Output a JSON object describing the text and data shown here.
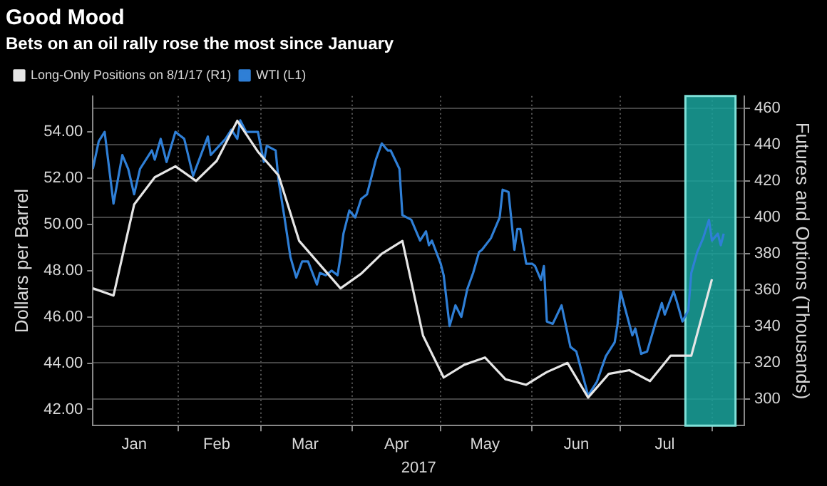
{
  "chart_data": {
    "type": "line",
    "title": "Good Mood",
    "subtitle": "Bets on an oil rally rose the most since January",
    "xlabel": "2017",
    "ylabel": "Dollars per Barrel",
    "y2label": "Futures and Options (Thousands)",
    "xlim": [
      "2017-01-03",
      "2017-08-12"
    ],
    "xticks": [
      {
        "value": "2017-01-17",
        "label": "Jan"
      },
      {
        "value": "2017-02-01",
        "label": null
      },
      {
        "value": "2017-02-14",
        "label": "Feb"
      },
      {
        "value": "2017-03-01",
        "label": null
      },
      {
        "value": "2017-03-16",
        "label": "Mar"
      },
      {
        "value": "2017-04-01",
        "label": null
      },
      {
        "value": "2017-04-16",
        "label": "Apr"
      },
      {
        "value": "2017-05-01",
        "label": null
      },
      {
        "value": "2017-05-16",
        "label": "May"
      },
      {
        "value": "2017-06-01",
        "label": null
      },
      {
        "value": "2017-06-16",
        "label": "Jun"
      },
      {
        "value": "2017-07-01",
        "label": null
      },
      {
        "value": "2017-07-16",
        "label": "Jul"
      },
      {
        "value": "2017-08-01",
        "label": null
      }
    ],
    "ylim": [
      41.3,
      55.55
    ],
    "yticks": [
      {
        "value": 42,
        "label": "42.00"
      },
      {
        "value": 44,
        "label": "44.00"
      },
      {
        "value": 46,
        "label": "46.00"
      },
      {
        "value": 48,
        "label": "48.00"
      },
      {
        "value": 50,
        "label": "50.00"
      },
      {
        "value": 52,
        "label": "52.00"
      },
      {
        "value": 54,
        "label": "54.00"
      }
    ],
    "y2lim": [
      285.6,
      466.6
    ],
    "y2ticks": [
      300,
      320,
      340,
      360,
      380,
      400,
      420,
      440,
      460
    ],
    "grid": true,
    "legend": "top left",
    "bands": [
      {
        "axis": "x",
        "from": "2017-07-23",
        "to": "2017-08-09",
        "color": "#1aa39c"
      }
    ],
    "series": [
      {
        "name": "Long-Only Positions on 8/1/17 (R1)",
        "color": "#e6e6e6",
        "axis": "y2",
        "x": [
          "2017-01-03",
          "2017-01-10",
          "2017-01-17",
          "2017-01-24",
          "2017-01-31",
          "2017-02-07",
          "2017-02-14",
          "2017-02-21",
          "2017-02-28",
          "2017-03-07",
          "2017-03-14",
          "2017-03-21",
          "2017-03-28",
          "2017-04-04",
          "2017-04-11",
          "2017-04-18",
          "2017-04-25",
          "2017-05-02",
          "2017-05-09",
          "2017-05-16",
          "2017-05-23",
          "2017-05-30",
          "2017-06-06",
          "2017-06-13",
          "2017-06-20",
          "2017-06-27",
          "2017-07-04",
          "2017-07-11",
          "2017-07-18",
          "2017-07-25",
          "2017-08-01"
        ],
        "values": [
          361,
          357,
          407,
          422,
          428,
          420,
          431,
          453,
          436,
          423,
          387,
          374,
          361,
          369,
          380,
          387,
          335,
          312,
          319,
          323,
          311,
          308,
          315,
          320,
          301,
          314,
          316,
          310,
          324,
          324,
          366
        ]
      },
      {
        "name": "WTI (L1)",
        "color": "#2f7fd6",
        "axis": "y",
        "x": [
          "2017-01-03",
          "2017-01-05",
          "2017-01-07",
          "2017-01-10",
          "2017-01-13",
          "2017-01-15",
          "2017-01-17",
          "2017-01-19",
          "2017-01-23",
          "2017-01-24",
          "2017-01-26",
          "2017-01-28",
          "2017-01-31",
          "2017-02-03",
          "2017-02-06",
          "2017-02-11",
          "2017-02-12",
          "2017-02-17",
          "2017-02-19",
          "2017-02-21",
          "2017-02-22",
          "2017-02-24",
          "2017-02-28",
          "2017-03-02",
          "2017-03-03",
          "2017-03-06",
          "2017-03-07",
          "2017-03-09",
          "2017-03-11",
          "2017-03-13",
          "2017-03-15",
          "2017-03-17",
          "2017-03-20",
          "2017-03-21",
          "2017-03-23",
          "2017-03-25",
          "2017-03-27",
          "2017-03-28",
          "2017-03-29",
          "2017-03-31",
          "2017-04-02",
          "2017-04-04",
          "2017-04-06",
          "2017-04-09",
          "2017-04-11",
          "2017-04-13",
          "2017-04-14",
          "2017-04-17",
          "2017-04-18",
          "2017-04-21",
          "2017-04-24",
          "2017-04-26",
          "2017-04-27",
          "2017-04-28",
          "2017-05-01",
          "2017-05-02",
          "2017-05-04",
          "2017-05-06",
          "2017-05-08",
          "2017-05-10",
          "2017-05-12",
          "2017-05-14",
          "2017-05-15",
          "2017-05-18",
          "2017-05-21",
          "2017-05-22",
          "2017-05-24",
          "2017-05-26",
          "2017-05-27",
          "2017-05-28",
          "2017-05-30",
          "2017-06-01",
          "2017-06-02",
          "2017-06-04",
          "2017-06-05",
          "2017-06-06",
          "2017-06-08",
          "2017-06-11",
          "2017-06-14",
          "2017-06-16",
          "2017-06-20",
          "2017-06-23",
          "2017-06-26",
          "2017-06-29",
          "2017-06-30",
          "2017-07-01",
          "2017-07-05",
          "2017-07-06",
          "2017-07-08",
          "2017-07-10",
          "2017-07-13",
          "2017-07-15",
          "2017-07-16",
          "2017-07-19",
          "2017-07-20",
          "2017-07-22",
          "2017-07-24",
          "2017-07-25",
          "2017-07-27",
          "2017-07-29",
          "2017-07-31",
          "2017-08-01",
          "2017-08-03",
          "2017-08-04",
          "2017-08-05"
        ],
        "values": [
          52.4,
          53.6,
          54.0,
          50.9,
          53.0,
          52.4,
          51.3,
          52.4,
          53.2,
          52.8,
          53.7,
          52.7,
          54.0,
          53.7,
          52.1,
          53.8,
          53.0,
          53.7,
          54.1,
          53.7,
          54.5,
          54.0,
          54.0,
          52.7,
          53.4,
          53.2,
          51.9,
          50.3,
          48.6,
          47.7,
          48.4,
          48.4,
          47.4,
          47.9,
          47.8,
          48.0,
          47.8,
          48.6,
          49.6,
          50.6,
          50.3,
          51.1,
          51.3,
          52.8,
          53.5,
          53.2,
          53.2,
          52.4,
          50.4,
          50.2,
          49.3,
          49.7,
          49.1,
          49.3,
          48.3,
          47.8,
          45.6,
          46.5,
          46.0,
          47.2,
          47.9,
          48.8,
          48.9,
          49.4,
          50.3,
          51.5,
          51.4,
          48.9,
          49.8,
          49.8,
          48.3,
          48.3,
          48.2,
          47.6,
          48.2,
          45.8,
          45.7,
          46.5,
          44.7,
          44.5,
          42.6,
          43.2,
          44.3,
          44.9,
          45.7,
          47.1,
          45.2,
          45.5,
          44.4,
          44.5,
          45.8,
          46.6,
          46.1,
          47.1,
          46.7,
          45.8,
          46.3,
          47.9,
          48.8,
          49.4,
          50.2,
          49.3,
          49.6,
          49.1,
          49.6
        ]
      }
    ]
  }
}
